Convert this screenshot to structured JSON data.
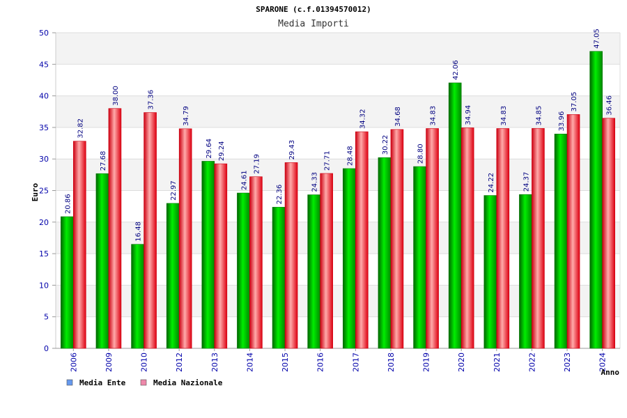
{
  "chart_data": {
    "type": "bar",
    "title": "SPARONE (c.f.01394570012)",
    "subtitle": "Media Importi",
    "xlabel": "Anno",
    "ylabel": "Euro",
    "ylim": [
      0,
      50
    ],
    "yticks": [
      0,
      5,
      10,
      15,
      20,
      25,
      30,
      35,
      40,
      45,
      50
    ],
    "categories": [
      "2006",
      "2009",
      "2010",
      "2012",
      "2013",
      "2014",
      "2015",
      "2016",
      "2017",
      "2018",
      "2019",
      "2020",
      "2021",
      "2022",
      "2023",
      "2024"
    ],
    "series": [
      {
        "name": "Media Ente",
        "color": "#00cc00",
        "values": [
          20.86,
          27.68,
          16.48,
          22.97,
          29.64,
          24.61,
          22.36,
          24.33,
          28.48,
          30.22,
          28.8,
          42.06,
          24.22,
          24.37,
          33.96,
          47.05
        ],
        "labels": [
          "20.86",
          "27.68",
          "16.48",
          "22.97",
          "29.64",
          "24.61",
          "22.36",
          "24.33",
          "28.48",
          "30.22",
          "28.80",
          "42.06",
          "24.22",
          "24.37",
          "33.96",
          "47.05"
        ]
      },
      {
        "name": "Media Nazionale",
        "color": "#ee1122",
        "values": [
          32.82,
          38.0,
          37.36,
          34.79,
          29.24,
          27.19,
          29.43,
          27.71,
          34.32,
          34.68,
          34.83,
          34.94,
          34.83,
          34.85,
          37.05,
          36.46
        ],
        "labels": [
          "32.82",
          "38.00",
          "37.36",
          "34.79",
          "29.24",
          "27.19",
          "29.43",
          "27.71",
          "34.32",
          "34.68",
          "34.83",
          "34.94",
          "34.83",
          "34.85",
          "37.05",
          "36.46"
        ]
      }
    ],
    "legend": {
      "position": "bottom-left",
      "items": [
        {
          "label": "Media Ente",
          "color": "#6699ee"
        },
        {
          "label": "Media Nazionale",
          "color": "#ee88aa"
        }
      ]
    },
    "grid": true
  }
}
